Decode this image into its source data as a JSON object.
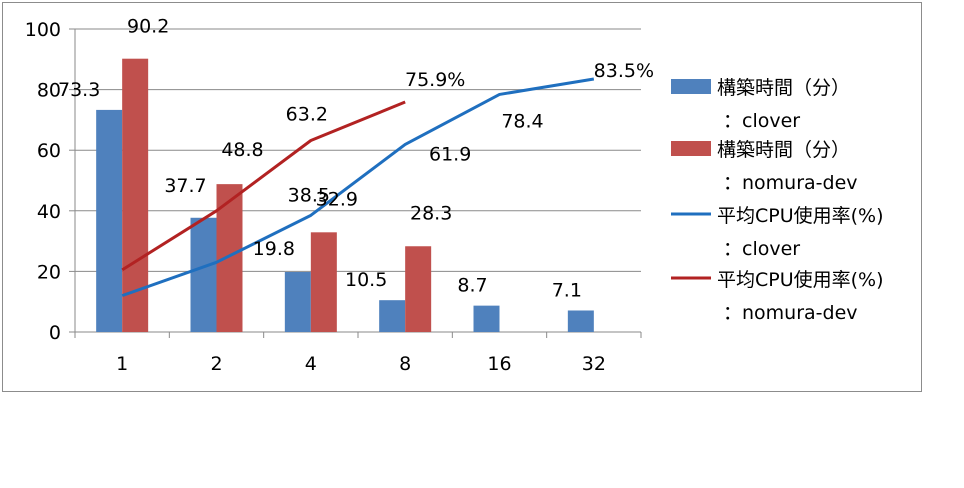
{
  "chart_data": {
    "type": "bar",
    "categories": [
      "1",
      "2",
      "4",
      "8",
      "16",
      "32"
    ],
    "ylim": [
      0,
      100
    ],
    "yticks": [
      "0",
      "20",
      "40",
      "60",
      "80",
      "100"
    ],
    "grid": true,
    "legend_position": "right",
    "bar_series": [
      {
        "name": "構築時間（分）",
        "name_line2": "：clover",
        "color": "#4f81bd",
        "values": [
          73.3,
          37.7,
          19.8,
          10.5,
          8.7,
          7.1
        ],
        "labels": [
          "73.3",
          "37.7",
          "19.8",
          "10.5",
          "8.7",
          "7.1"
        ]
      },
      {
        "name": "構築時間（分）",
        "name_line2": "：nomura-dev",
        "color": "#c0504d",
        "values": [
          90.2,
          48.8,
          32.9,
          28.3,
          null,
          null
        ],
        "labels": [
          "90.2",
          "48.8",
          "32.9",
          "28.3",
          "",
          ""
        ]
      }
    ],
    "line_series": [
      {
        "name": "平均CPU使用率(%)",
        "name_line2": "：clover",
        "color": "#1f6fbf",
        "values": [
          12,
          23,
          38.5,
          61.9,
          78.4,
          83.5
        ],
        "labels": [
          "",
          "",
          "38.5",
          "61.9",
          "78.4",
          "83.5%"
        ]
      },
      {
        "name": "平均CPU使用率(%)",
        "name_line2": "：nomura-dev",
        "color": "#b22222",
        "values": [
          20.5,
          40,
          63.2,
          75.9,
          null,
          null
        ],
        "labels": [
          "",
          "",
          "63.2",
          "75.9%",
          "",
          ""
        ]
      }
    ]
  }
}
